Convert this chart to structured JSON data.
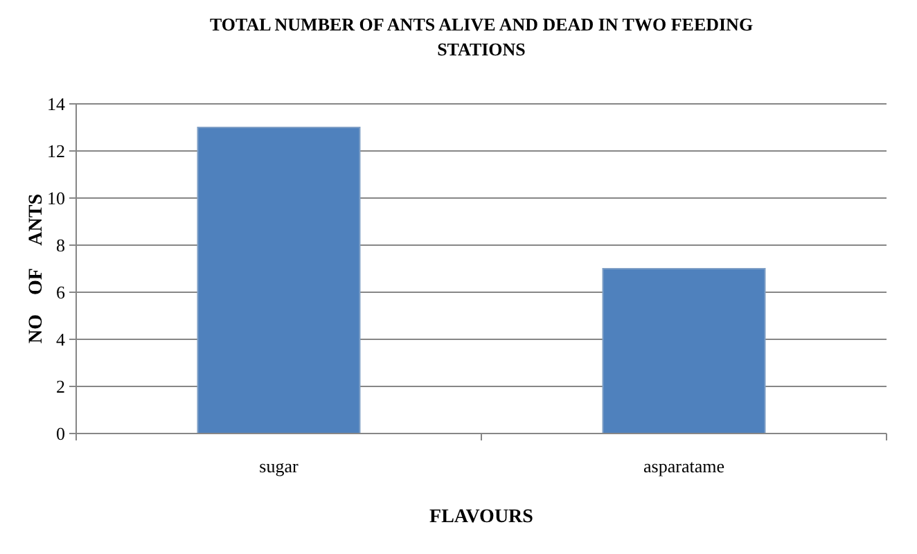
{
  "chart_data": {
    "type": "bar",
    "title": "TOTAL NUMBER OF ANTS ALIVE AND DEAD IN TWO FEEDING STATIONS",
    "xlabel": "FLAVOURS",
    "ylabel": "NO    OF     ANTS",
    "categories": [
      "sugar",
      "asparatame"
    ],
    "values": [
      13,
      7
    ],
    "color": "#4f81bd",
    "ylim": [
      0,
      14
    ],
    "yticks": [
      0,
      2,
      4,
      6,
      8,
      10,
      12,
      14
    ],
    "grid": "y"
  }
}
